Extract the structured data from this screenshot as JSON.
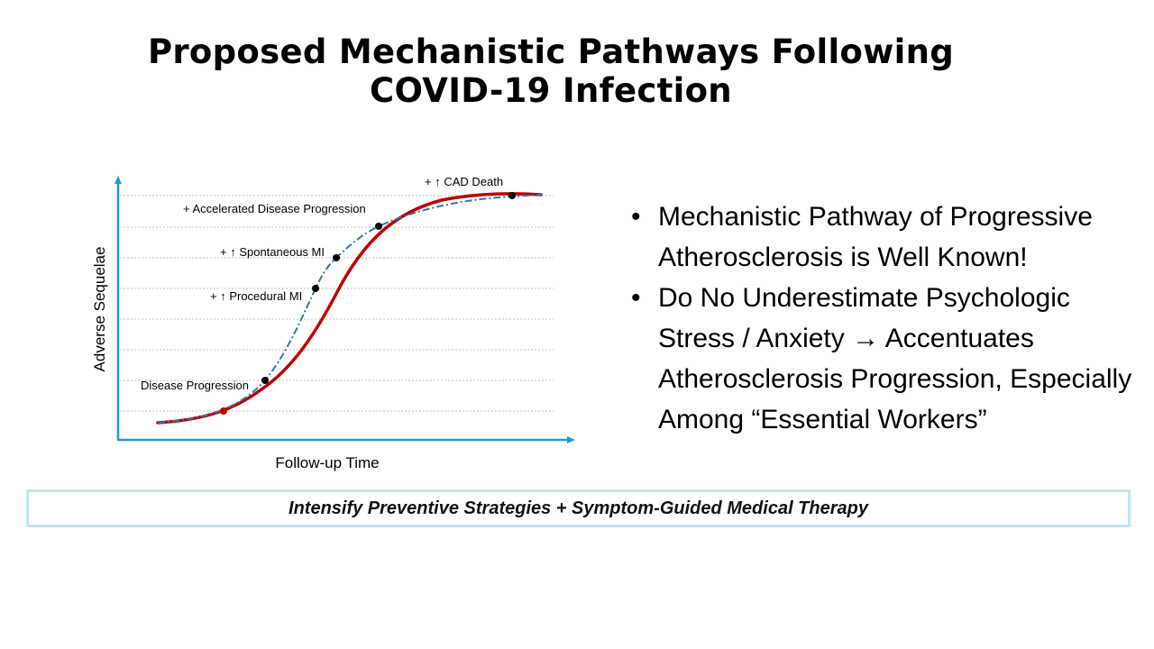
{
  "title": {
    "line1": "Proposed Mechanistic Pathways Following",
    "line2": "COVID-19 Infection"
  },
  "diagram": {
    "y_axis_label": "Adverse Sequelae",
    "x_axis_label": "Follow-up Time",
    "labels": {
      "cad_death": "+ ↑  CAD Death",
      "accelerated": "+ Accelerated Disease Progression",
      "spontaneous_mi": "+ ↑ Spontaneous MI",
      "procedural_mi": "+ ↑ Procedural MI",
      "disease_progression": "Disease Progression"
    },
    "colors": {
      "axis": "#1f9bd7",
      "solid_curve": "#c00000",
      "dashed_curve": "#2e75b6",
      "grid": "#bfbfbf"
    }
  },
  "bullets": [
    "Mechanistic Pathway of Progressive Atherosclerosis is Well Known!",
    "Do No Underestimate Psychologic Stress / Anxiety → Accentuates Atherosclerosis Progression, Especially Among “Essential Workers”"
  ],
  "banner": {
    "text": "Intensify Preventive Strategies + Symptom-Guided Medical Therapy"
  }
}
